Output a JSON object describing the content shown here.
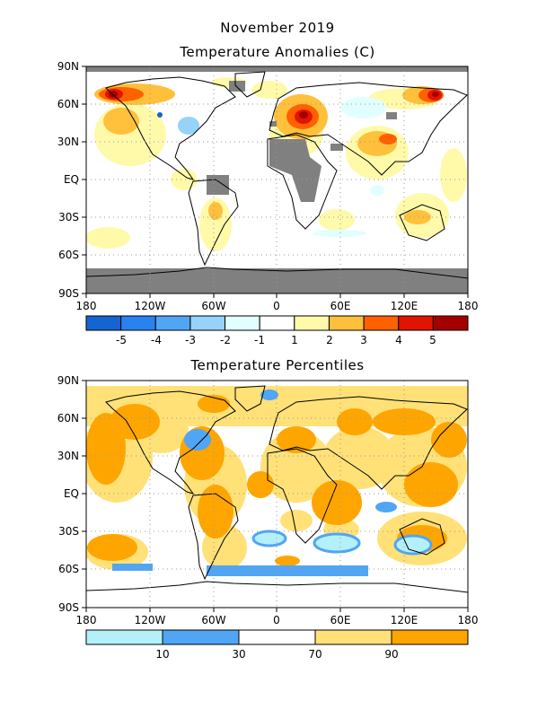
{
  "header": {
    "month": "November 2019"
  },
  "map1": {
    "title": "Temperature Anomalies (C)",
    "lat_labels": [
      "90N",
      "60N",
      "30N",
      "EQ",
      "30S",
      "60S",
      "90S"
    ],
    "lon_labels": [
      "180",
      "120W",
      "60W",
      "0",
      "60E",
      "120E",
      "180"
    ],
    "legend": {
      "colors": [
        "#1464d2",
        "#2882f0",
        "#50a5f5",
        "#96d2fa",
        "#e1ffff",
        "#ffffff",
        "#fffaaa",
        "#ffc03c",
        "#ff6000",
        "#e11400",
        "#a50000"
      ],
      "labels": [
        "-5",
        "-4",
        "-3",
        "-2",
        "-1",
        "1",
        "2",
        "3",
        "4",
        "5"
      ]
    },
    "no_data_color": "#808080"
  },
  "map2": {
    "title": "Temperature Percentiles",
    "lat_labels": [
      "90N",
      "60N",
      "30N",
      "EQ",
      "30S",
      "60S",
      "90S"
    ],
    "lon_labels": [
      "180",
      "120W",
      "60W",
      "0",
      "60E",
      "120E",
      "180"
    ],
    "legend": {
      "colors": [
        "#b4f0fa",
        "#50a5f5",
        "#ffffff",
        "#ffe178",
        "#ffa500"
      ],
      "labels": [
        "10",
        "30",
        "70",
        "90"
      ]
    }
  }
}
